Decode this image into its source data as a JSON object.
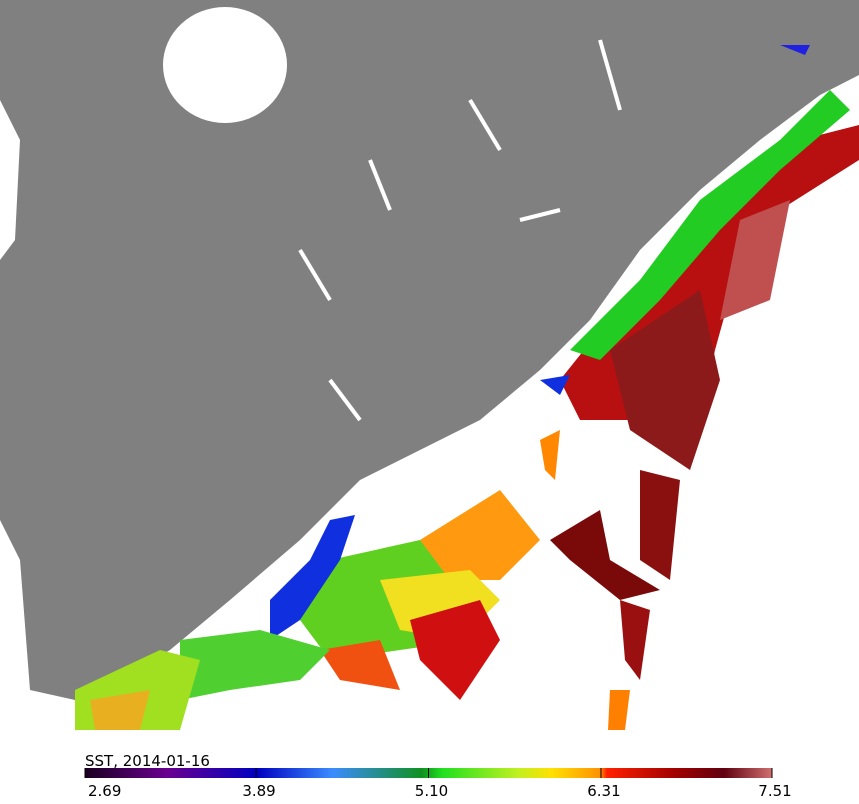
{
  "chart_data": {
    "type": "map",
    "title": "SST, 2014-01-16",
    "colorbar": {
      "lim": [
        2.69,
        7.51
      ],
      "ticks": [
        2.69,
        3.89,
        {
          "value": 5.1,
          "label": "5.10"
        },
        6.31,
        7.51
      ]
    }
  }
}
